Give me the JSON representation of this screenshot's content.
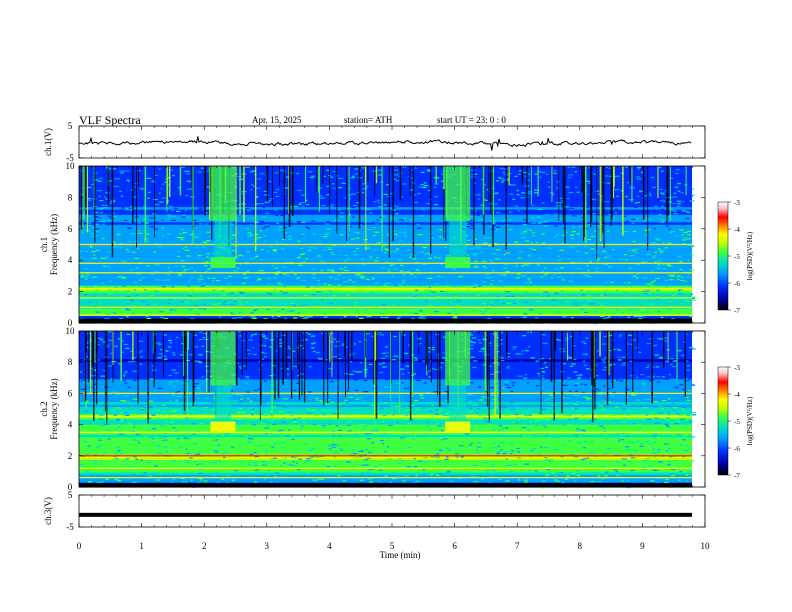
{
  "header": {
    "title": "VLF  Spectra",
    "date": "Apr. 15, 2025",
    "station": "station= ATH",
    "start": "start  UT  =   23: 0   : 0"
  },
  "colors": {
    "spectrogram_scale": [
      "#000000",
      "#0000a0",
      "#0030ff",
      "#00a0ff",
      "#00e0c0",
      "#40ff40",
      "#c0ff00",
      "#ffff00",
      "#ff8000",
      "#ff0000",
      "#ffc0c0",
      "#ffffff"
    ],
    "trace": "#000000"
  },
  "chart_data": [
    {
      "type": "line",
      "panel": "ch1-waveform",
      "ylabel": "ch.1(V)",
      "ylim": [
        -5,
        5
      ],
      "yticks": [
        "5",
        "-5"
      ],
      "xlim": [
        0,
        10
      ],
      "description_values": {
        "baseline_v": 0,
        "noise_amplitude_v": 1.2
      }
    },
    {
      "type": "heatmap",
      "panel": "ch1-spectrogram",
      "ylabel": "ch.1\nFrequency  (kHz)",
      "ylim": [
        0,
        10
      ],
      "yticks": [
        "0",
        "2",
        "4",
        "6",
        "8",
        "10"
      ],
      "xlim": [
        0,
        9.83
      ],
      "colorbar": {
        "label": "log(PSD)(V²/Hz)",
        "range": [
          -7,
          -3
        ],
        "ticks": [
          "-3",
          "-4",
          "-5",
          "-6",
          "-7"
        ]
      },
      "bright_bursts_min": [
        [
          2.1,
          2.5
        ],
        [
          5.85,
          6.25
        ]
      ],
      "bands_khz": [
        0.5,
        1.0,
        1.6,
        2.2,
        3.2,
        3.8,
        5.0
      ]
    },
    {
      "type": "heatmap",
      "panel": "ch2-spectrogram",
      "ylabel": "ch.2\nFrequency  (kHz)",
      "ylim": [
        0,
        10
      ],
      "yticks": [
        "0",
        "2",
        "4",
        "6",
        "8",
        "10"
      ],
      "xlim": [
        0,
        9.83
      ],
      "colorbar": {
        "label": "log(PSD)(V²/Hz)",
        "range": [
          -7,
          -3
        ],
        "ticks": [
          "-3",
          "-4",
          "-5",
          "-6",
          "-7"
        ]
      },
      "bright_bursts_min": [
        [
          2.1,
          2.5
        ],
        [
          5.85,
          6.25
        ]
      ],
      "bands_khz": [
        0.6,
        1.2,
        2.0,
        3.5,
        4.5,
        6.0
      ]
    },
    {
      "type": "line",
      "panel": "ch3-waveform",
      "ylabel": "ch.3(V)",
      "ylim": [
        -5,
        5
      ],
      "yticks": [
        "5",
        "-5"
      ],
      "xlim": [
        0,
        10
      ],
      "description_values": {
        "baseline_v": -1.2
      }
    }
  ],
  "xaxis": {
    "label": "Time  (min)",
    "ticks": [
      "0",
      "1",
      "2",
      "3",
      "4",
      "5",
      "6",
      "7",
      "8",
      "9",
      "10"
    ],
    "range": [
      0,
      10
    ]
  }
}
